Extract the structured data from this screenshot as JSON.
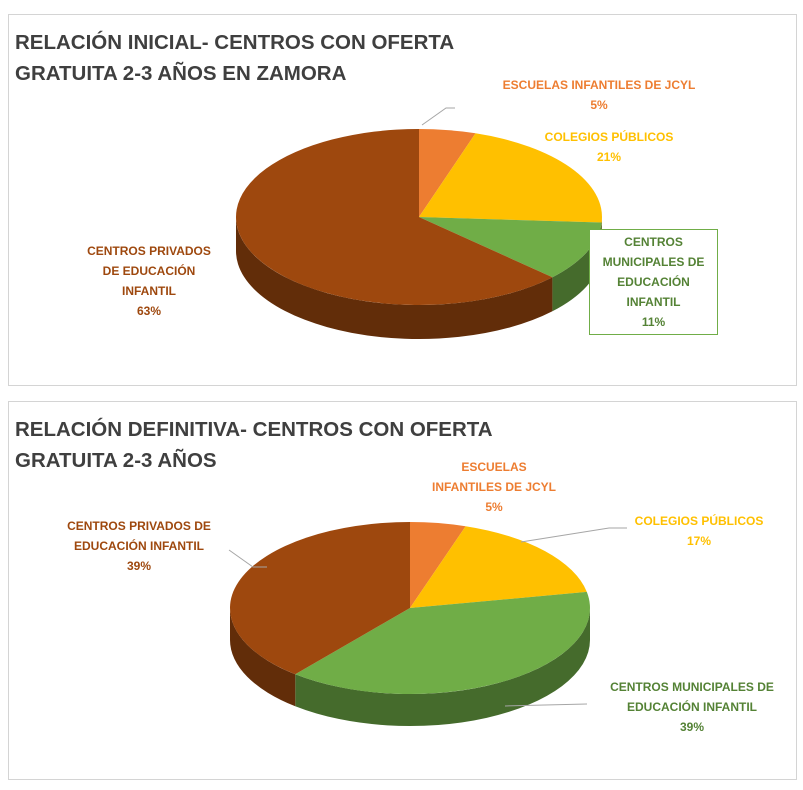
{
  "colors": {
    "escuelas": "#ed7d31",
    "colegios": "#ffc000",
    "municipales": "#70ad47",
    "privados": "#9e480e",
    "title": "#3f3f3f"
  },
  "chart_data": [
    {
      "type": "pie",
      "title_lines": [
        "RELACIÓN INICIAL- CENTROS CON OFERTA",
        "GRATUITA 2-3 AÑOS EN ZAMORA"
      ],
      "categories": [
        "ESCUELAS INFANTILES DE JCYL",
        "COLEGIOS PÚBLICOS",
        "CENTROS MUNICIPALES DE EDUCACIÓN INFANTIL",
        "CENTROS PRIVADOS DE EDUCACIÓN INFANTIL"
      ],
      "values": [
        5,
        21,
        11,
        63
      ],
      "value_labels": [
        "5%",
        "21%",
        "11%",
        "63%"
      ],
      "label_lines": [
        [
          "ESCUELAS INFANTILES DE JCYL",
          "5%"
        ],
        [
          "COLEGIOS PÚBLICOS",
          "21%"
        ],
        [
          "CENTROS",
          "MUNICIPALES DE",
          "EDUCACIÓN",
          "INFANTIL",
          "11%"
        ],
        [
          "CENTROS PRIVADOS",
          "DE EDUCACIÓN",
          "INFANTIL",
          "63%"
        ]
      ],
      "style": "3d",
      "legend": "none"
    },
    {
      "type": "pie",
      "title_lines": [
        "RELACIÓN DEFINITIVA- CENTROS CON OFERTA",
        "GRATUITA 2-3 AÑOS"
      ],
      "categories": [
        "ESCUELAS INFANTILES DE JCYL",
        "COLEGIOS PÚBLICOS",
        "CENTROS MUNICIPALES DE EDUCACIÓN INFANTIL",
        "CENTROS PRIVADOS DE EDUCACIÓN INFANTIL"
      ],
      "values": [
        5,
        17,
        39,
        39
      ],
      "value_labels": [
        "5%",
        "17%",
        "39%",
        "39%"
      ],
      "label_lines": [
        [
          "ESCUELAS",
          "INFANTILES DE JCYL",
          "5%"
        ],
        [
          "COLEGIOS PÚBLICOS",
          "17%"
        ],
        [
          "CENTROS MUNICIPALES DE",
          "EDUCACIÓN INFANTIL",
          "39%"
        ],
        [
          "CENTROS PRIVADOS DE",
          "EDUCACIÓN INFANTIL",
          "39%"
        ]
      ],
      "style": "3d",
      "legend": "none"
    }
  ]
}
